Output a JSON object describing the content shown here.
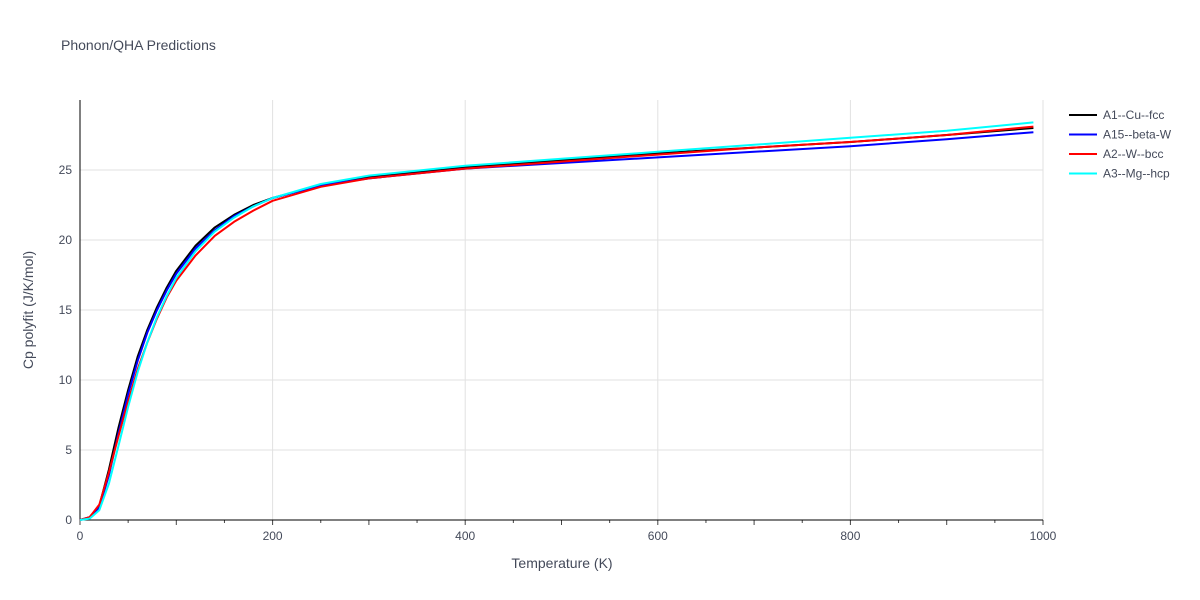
{
  "chart_data": {
    "type": "line",
    "title": "Phonon/QHA Predictions",
    "xlabel": "Temperature (K)",
    "ylabel": "Cp polyfit (J/K/mol)",
    "xlim": [
      0,
      1000
    ],
    "ylim": [
      0,
      30
    ],
    "x_ticks": [
      0,
      200,
      400,
      600,
      800,
      1000
    ],
    "y_ticks": [
      0,
      5,
      10,
      15,
      20,
      25
    ],
    "grid": true,
    "legend_position": "top-right",
    "x": [
      0,
      10,
      20,
      30,
      40,
      50,
      60,
      70,
      80,
      90,
      100,
      120,
      140,
      160,
      180,
      200,
      250,
      300,
      400,
      500,
      600,
      700,
      800,
      900,
      990
    ],
    "series": [
      {
        "name": "A1--Cu--fcc",
        "color": "#000000",
        "values": [
          0,
          0.2,
          1.0,
          3.6,
          6.6,
          9.3,
          11.7,
          13.6,
          15.2,
          16.6,
          17.8,
          19.6,
          20.9,
          21.8,
          22.5,
          23.0,
          23.9,
          24.5,
          25.2,
          25.7,
          26.2,
          26.6,
          27.0,
          27.5,
          28.0
        ]
      },
      {
        "name": "A15--beta-W",
        "color": "#0000ff",
        "values": [
          0,
          0.2,
          0.9,
          3.2,
          6.2,
          9.0,
          11.4,
          13.4,
          15.0,
          16.4,
          17.6,
          19.4,
          20.7,
          21.7,
          22.4,
          23.0,
          23.9,
          24.4,
          25.1,
          25.5,
          25.9,
          26.3,
          26.7,
          27.2,
          27.7
        ]
      },
      {
        "name": "A2--W--bcc",
        "color": "#ff0000",
        "values": [
          0,
          0.2,
          1.1,
          3.4,
          6.0,
          8.5,
          10.8,
          12.7,
          14.4,
          15.9,
          17.1,
          18.9,
          20.3,
          21.3,
          22.1,
          22.8,
          23.8,
          24.4,
          25.1,
          25.6,
          26.1,
          26.6,
          27.0,
          27.5,
          28.1
        ]
      },
      {
        "name": "A3--Mg--hcp",
        "color": "#00ffff",
        "values": [
          0,
          0.1,
          0.7,
          2.6,
          5.3,
          8.1,
          10.6,
          12.7,
          14.5,
          16.0,
          17.3,
          19.2,
          20.6,
          21.6,
          22.4,
          23.0,
          24.0,
          24.6,
          25.3,
          25.8,
          26.3,
          26.8,
          27.3,
          27.8,
          28.4
        ]
      }
    ]
  }
}
